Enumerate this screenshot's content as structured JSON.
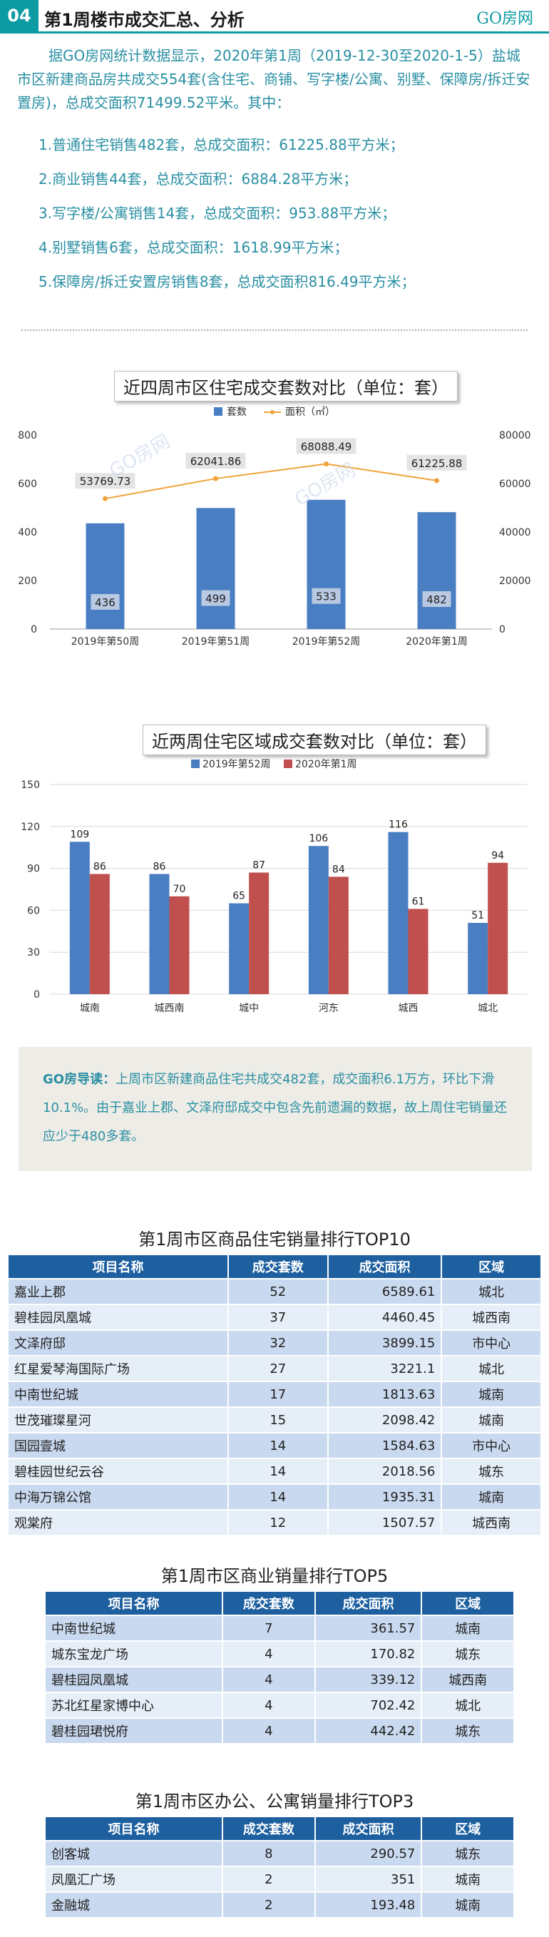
{
  "header": {
    "section_number": "04",
    "title": "第1周楼市成交汇总、分析",
    "brand": "GO房网"
  },
  "intro": {
    "paragraph": "据GO房网统计数据显示，2020年第1周（2019-12-30至2020-1-5）盐城市区新建商品房共成交554套(含住宅、商铺、写字楼/公寓、别墅、保障房/拆迁安置房)，总成交面积71499.52平米。其中：",
    "points": [
      "1.普通住宅销售482套，总成交面积：61225.88平方米；",
      "2.商业销售44套，总成交面积：6884.28平方米；",
      "3.写字楼/公寓销售14套，总成交面积：953.88平方米；",
      "4.别墅销售6套，总成交面积：1618.99平方米；",
      "5.保障房/拆迁安置房销售8套，总成交面积816.49平方米；"
    ]
  },
  "watermark": "GO房网",
  "chart_data": [
    {
      "type": "bar",
      "title": "近四周市区住宅成交套数对比（单位：套）",
      "categories": [
        "2019年第50周",
        "2019年第51周",
        "2019年第52周",
        "2020年第1周"
      ],
      "series": [
        {
          "name": "套数",
          "type": "bar",
          "axis": "left",
          "color": "#4a7ec2",
          "values": [
            436,
            499,
            533,
            482
          ]
        },
        {
          "name": "面积（㎡）",
          "type": "line",
          "axis": "right",
          "color": "#f0a33a",
          "values": [
            53769.73,
            62041.86,
            68088.49,
            61225.88
          ]
        }
      ],
      "ylim_left": [
        0,
        800
      ],
      "yticks_left": [
        0,
        200,
        400,
        600,
        800
      ],
      "ylim_right": [
        0,
        80000
      ],
      "yticks_right": [
        0,
        20000,
        40000,
        60000,
        80000
      ],
      "legend": "top-center",
      "grid": false
    },
    {
      "type": "bar",
      "title": "近两周住宅区域成交套数对比（单位：套）",
      "categories": [
        "城南",
        "城西南",
        "城中",
        "河东",
        "城西",
        "城北"
      ],
      "series": [
        {
          "name": "2019年第52周",
          "color": "#4a7ec2",
          "values": [
            109,
            86,
            65,
            106,
            116,
            51
          ]
        },
        {
          "name": "2020年第1周",
          "color": "#c0504d",
          "values": [
            86,
            70,
            87,
            84,
            61,
            94
          ]
        }
      ],
      "ylim": [
        0,
        150
      ],
      "yticks": [
        0,
        30,
        60,
        90,
        120,
        150
      ],
      "legend": "top-center",
      "grid": true
    }
  ],
  "guide": {
    "label": "GO房导读：",
    "text": "上周市区新建商品住宅共成交482套，成交面积6.1万方，环比下滑10.1%。由于嘉业上郡、文泽府邸成交中包含先前遗漏的数据，故上周住宅销量还应少于480多套。"
  },
  "table_residential": {
    "title": "第1周市区商品住宅销量排行TOP10",
    "headers": [
      "项目名称",
      "成交套数",
      "成交面积",
      "区域"
    ],
    "rows": [
      [
        "嘉业上郡",
        "52",
        "6589.61",
        "城北"
      ],
      [
        "碧桂园凤凰城",
        "37",
        "4460.45",
        "城西南"
      ],
      [
        "文泽府邸",
        "32",
        "3899.15",
        "市中心"
      ],
      [
        "红星爱琴海国际广场",
        "27",
        "3221.1",
        "城北"
      ],
      [
        "中南世纪城",
        "17",
        "1813.63",
        "城南"
      ],
      [
        "世茂璀璨星河",
        "15",
        "2098.42",
        "城南"
      ],
      [
        "国园壹城",
        "14",
        "1584.63",
        "市中心"
      ],
      [
        "碧桂园世纪云谷",
        "14",
        "2018.56",
        "城东"
      ],
      [
        "中海万锦公馆",
        "14",
        "1935.31",
        "城南"
      ],
      [
        "观棠府",
        "12",
        "1507.57",
        "城西南"
      ]
    ]
  },
  "table_commercial": {
    "title": "第1周市区商业销量排行TOP5",
    "headers": [
      "项目名称",
      "成交套数",
      "成交面积",
      "区域"
    ],
    "rows": [
      [
        "中南世纪城",
        "7",
        "361.57",
        "城南"
      ],
      [
        "城东宝龙广场",
        "4",
        "170.82",
        "城东"
      ],
      [
        "碧桂园凤凰城",
        "4",
        "339.12",
        "城西南"
      ],
      [
        "苏北红星家博中心",
        "4",
        "702.42",
        "城北"
      ],
      [
        "碧桂园珺悦府",
        "4",
        "442.42",
        "城东"
      ]
    ]
  },
  "table_office": {
    "title": "第1周市区办公、公寓销量排行TOP3",
    "headers": [
      "项目名称",
      "成交套数",
      "成交面积",
      "区域"
    ],
    "rows": [
      [
        "创客城",
        "8",
        "290.57",
        "城东"
      ],
      [
        "凤凰汇广场",
        "2",
        "351",
        "城南"
      ],
      [
        "金融城",
        "2",
        "193.48",
        "城南"
      ]
    ]
  }
}
